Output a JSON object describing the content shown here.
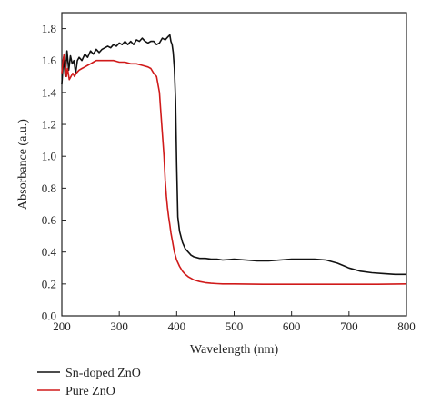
{
  "chart_data": {
    "type": "line",
    "xlabel": "Wavelength (nm)",
    "ylabel": "Absorbance (a.u.)",
    "xlim": [
      200,
      800
    ],
    "ylim": [
      0,
      1.9
    ],
    "xticks": [
      200,
      300,
      400,
      500,
      600,
      700,
      800
    ],
    "yticks": [
      0.0,
      0.2,
      0.4,
      0.6,
      0.8,
      1.0,
      1.2,
      1.4,
      1.6,
      1.8
    ],
    "ytick_labels": [
      "0.0",
      "0.2",
      "0.4",
      "0.6",
      "0.8",
      "1.0",
      "1.2",
      "1.4",
      "1.6",
      "1.8"
    ],
    "grid": false,
    "legend_position": "bottom-left, below plot",
    "series": [
      {
        "name": "Sn-doped ZnO",
        "color": "#111111",
        "x": [
          200,
          203,
          206,
          209,
          212,
          215,
          218,
          221,
          224,
          227,
          230,
          235,
          240,
          245,
          250,
          255,
          260,
          265,
          270,
          275,
          280,
          285,
          290,
          295,
          300,
          305,
          310,
          315,
          320,
          325,
          330,
          335,
          340,
          345,
          350,
          355,
          360,
          365,
          370,
          375,
          380,
          385,
          388,
          390,
          392,
          394,
          396,
          398,
          400,
          402,
          405,
          410,
          415,
          420,
          425,
          430,
          440,
          450,
          460,
          470,
          480,
          500,
          520,
          540,
          560,
          580,
          600,
          620,
          640,
          660,
          680,
          700,
          720,
          740,
          760,
          780,
          800
        ],
        "y": [
          1.45,
          1.62,
          1.5,
          1.66,
          1.54,
          1.63,
          1.58,
          1.6,
          1.52,
          1.6,
          1.62,
          1.6,
          1.64,
          1.62,
          1.66,
          1.64,
          1.67,
          1.65,
          1.67,
          1.68,
          1.69,
          1.68,
          1.7,
          1.69,
          1.71,
          1.7,
          1.72,
          1.7,
          1.72,
          1.7,
          1.73,
          1.72,
          1.74,
          1.72,
          1.71,
          1.72,
          1.72,
          1.7,
          1.71,
          1.74,
          1.73,
          1.75,
          1.76,
          1.72,
          1.7,
          1.65,
          1.55,
          1.35,
          0.95,
          0.62,
          0.53,
          0.46,
          0.42,
          0.4,
          0.38,
          0.37,
          0.36,
          0.36,
          0.355,
          0.355,
          0.35,
          0.355,
          0.35,
          0.345,
          0.345,
          0.35,
          0.355,
          0.355,
          0.355,
          0.35,
          0.33,
          0.3,
          0.28,
          0.27,
          0.265,
          0.26,
          0.26
        ]
      },
      {
        "name": "Pure ZnO",
        "color": "#d01a1a",
        "x": [
          200,
          202,
          204,
          206,
          208,
          210,
          213,
          216,
          219,
          222,
          225,
          230,
          235,
          240,
          245,
          250,
          255,
          260,
          265,
          270,
          280,
          290,
          300,
          310,
          320,
          330,
          340,
          350,
          355,
          360,
          365,
          370,
          372,
          375,
          378,
          380,
          382,
          384,
          386,
          388,
          390,
          393,
          396,
          400,
          405,
          410,
          415,
          420,
          430,
          440,
          450,
          460,
          470,
          480,
          500,
          550,
          600,
          650,
          700,
          750,
          800
        ],
        "y": [
          1.52,
          1.6,
          1.64,
          1.58,
          1.5,
          1.55,
          1.48,
          1.5,
          1.52,
          1.5,
          1.52,
          1.54,
          1.55,
          1.56,
          1.57,
          1.58,
          1.59,
          1.6,
          1.6,
          1.6,
          1.6,
          1.6,
          1.59,
          1.59,
          1.58,
          1.58,
          1.57,
          1.56,
          1.55,
          1.52,
          1.5,
          1.4,
          1.3,
          1.15,
          1.0,
          0.85,
          0.75,
          0.68,
          0.62,
          0.57,
          0.52,
          0.46,
          0.4,
          0.35,
          0.31,
          0.28,
          0.26,
          0.245,
          0.225,
          0.215,
          0.208,
          0.204,
          0.202,
          0.2,
          0.2,
          0.198,
          0.198,
          0.198,
          0.198,
          0.198,
          0.2
        ]
      }
    ]
  }
}
